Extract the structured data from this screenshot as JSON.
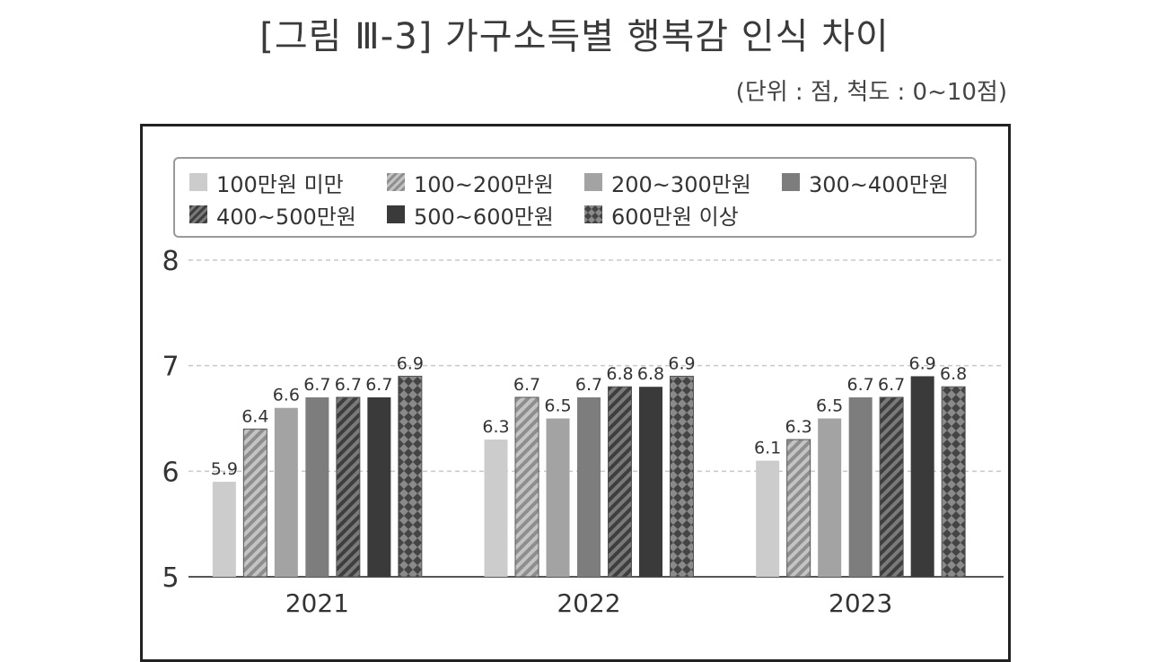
{
  "figure": {
    "title": "[그림 Ⅲ-3] 가구소득별 행복감 인식 차이",
    "unit_note": "(단위 : 점, 척도 : 0~10점)"
  },
  "chart_data": {
    "type": "bar",
    "categories": [
      "2021",
      "2022",
      "2023"
    ],
    "series": [
      {
        "name": "100만원 미만",
        "values": [
          5.9,
          6.3,
          6.1
        ],
        "color": "#cccccc",
        "pattern": "solid"
      },
      {
        "name": "100~200만원",
        "values": [
          6.4,
          6.7,
          6.3
        ],
        "color": "#a8a8a8",
        "pattern": "diagonal"
      },
      {
        "name": "200~300만원",
        "values": [
          6.6,
          6.5,
          6.5
        ],
        "color": "#a3a3a3",
        "pattern": "solid"
      },
      {
        "name": "300~400만원",
        "values": [
          6.7,
          6.7,
          6.7
        ],
        "color": "#7d7d7d",
        "pattern": "solid"
      },
      {
        "name": "400~500만원",
        "values": [
          6.7,
          6.8,
          6.7
        ],
        "color": "#5a5a5a",
        "pattern": "diagonal"
      },
      {
        "name": "500~600만원",
        "values": [
          6.7,
          6.8,
          6.9
        ],
        "color": "#3a3a3a",
        "pattern": "solid"
      },
      {
        "name": "600만원 이상",
        "values": [
          6.9,
          6.9,
          6.8
        ],
        "color": "#6a6a6a",
        "pattern": "crosshatch"
      }
    ],
    "y_ticks": [
      "5",
      "6",
      "7",
      "8"
    ],
    "ylim": [
      5,
      8
    ],
    "grid": true,
    "legend_position": "top"
  }
}
